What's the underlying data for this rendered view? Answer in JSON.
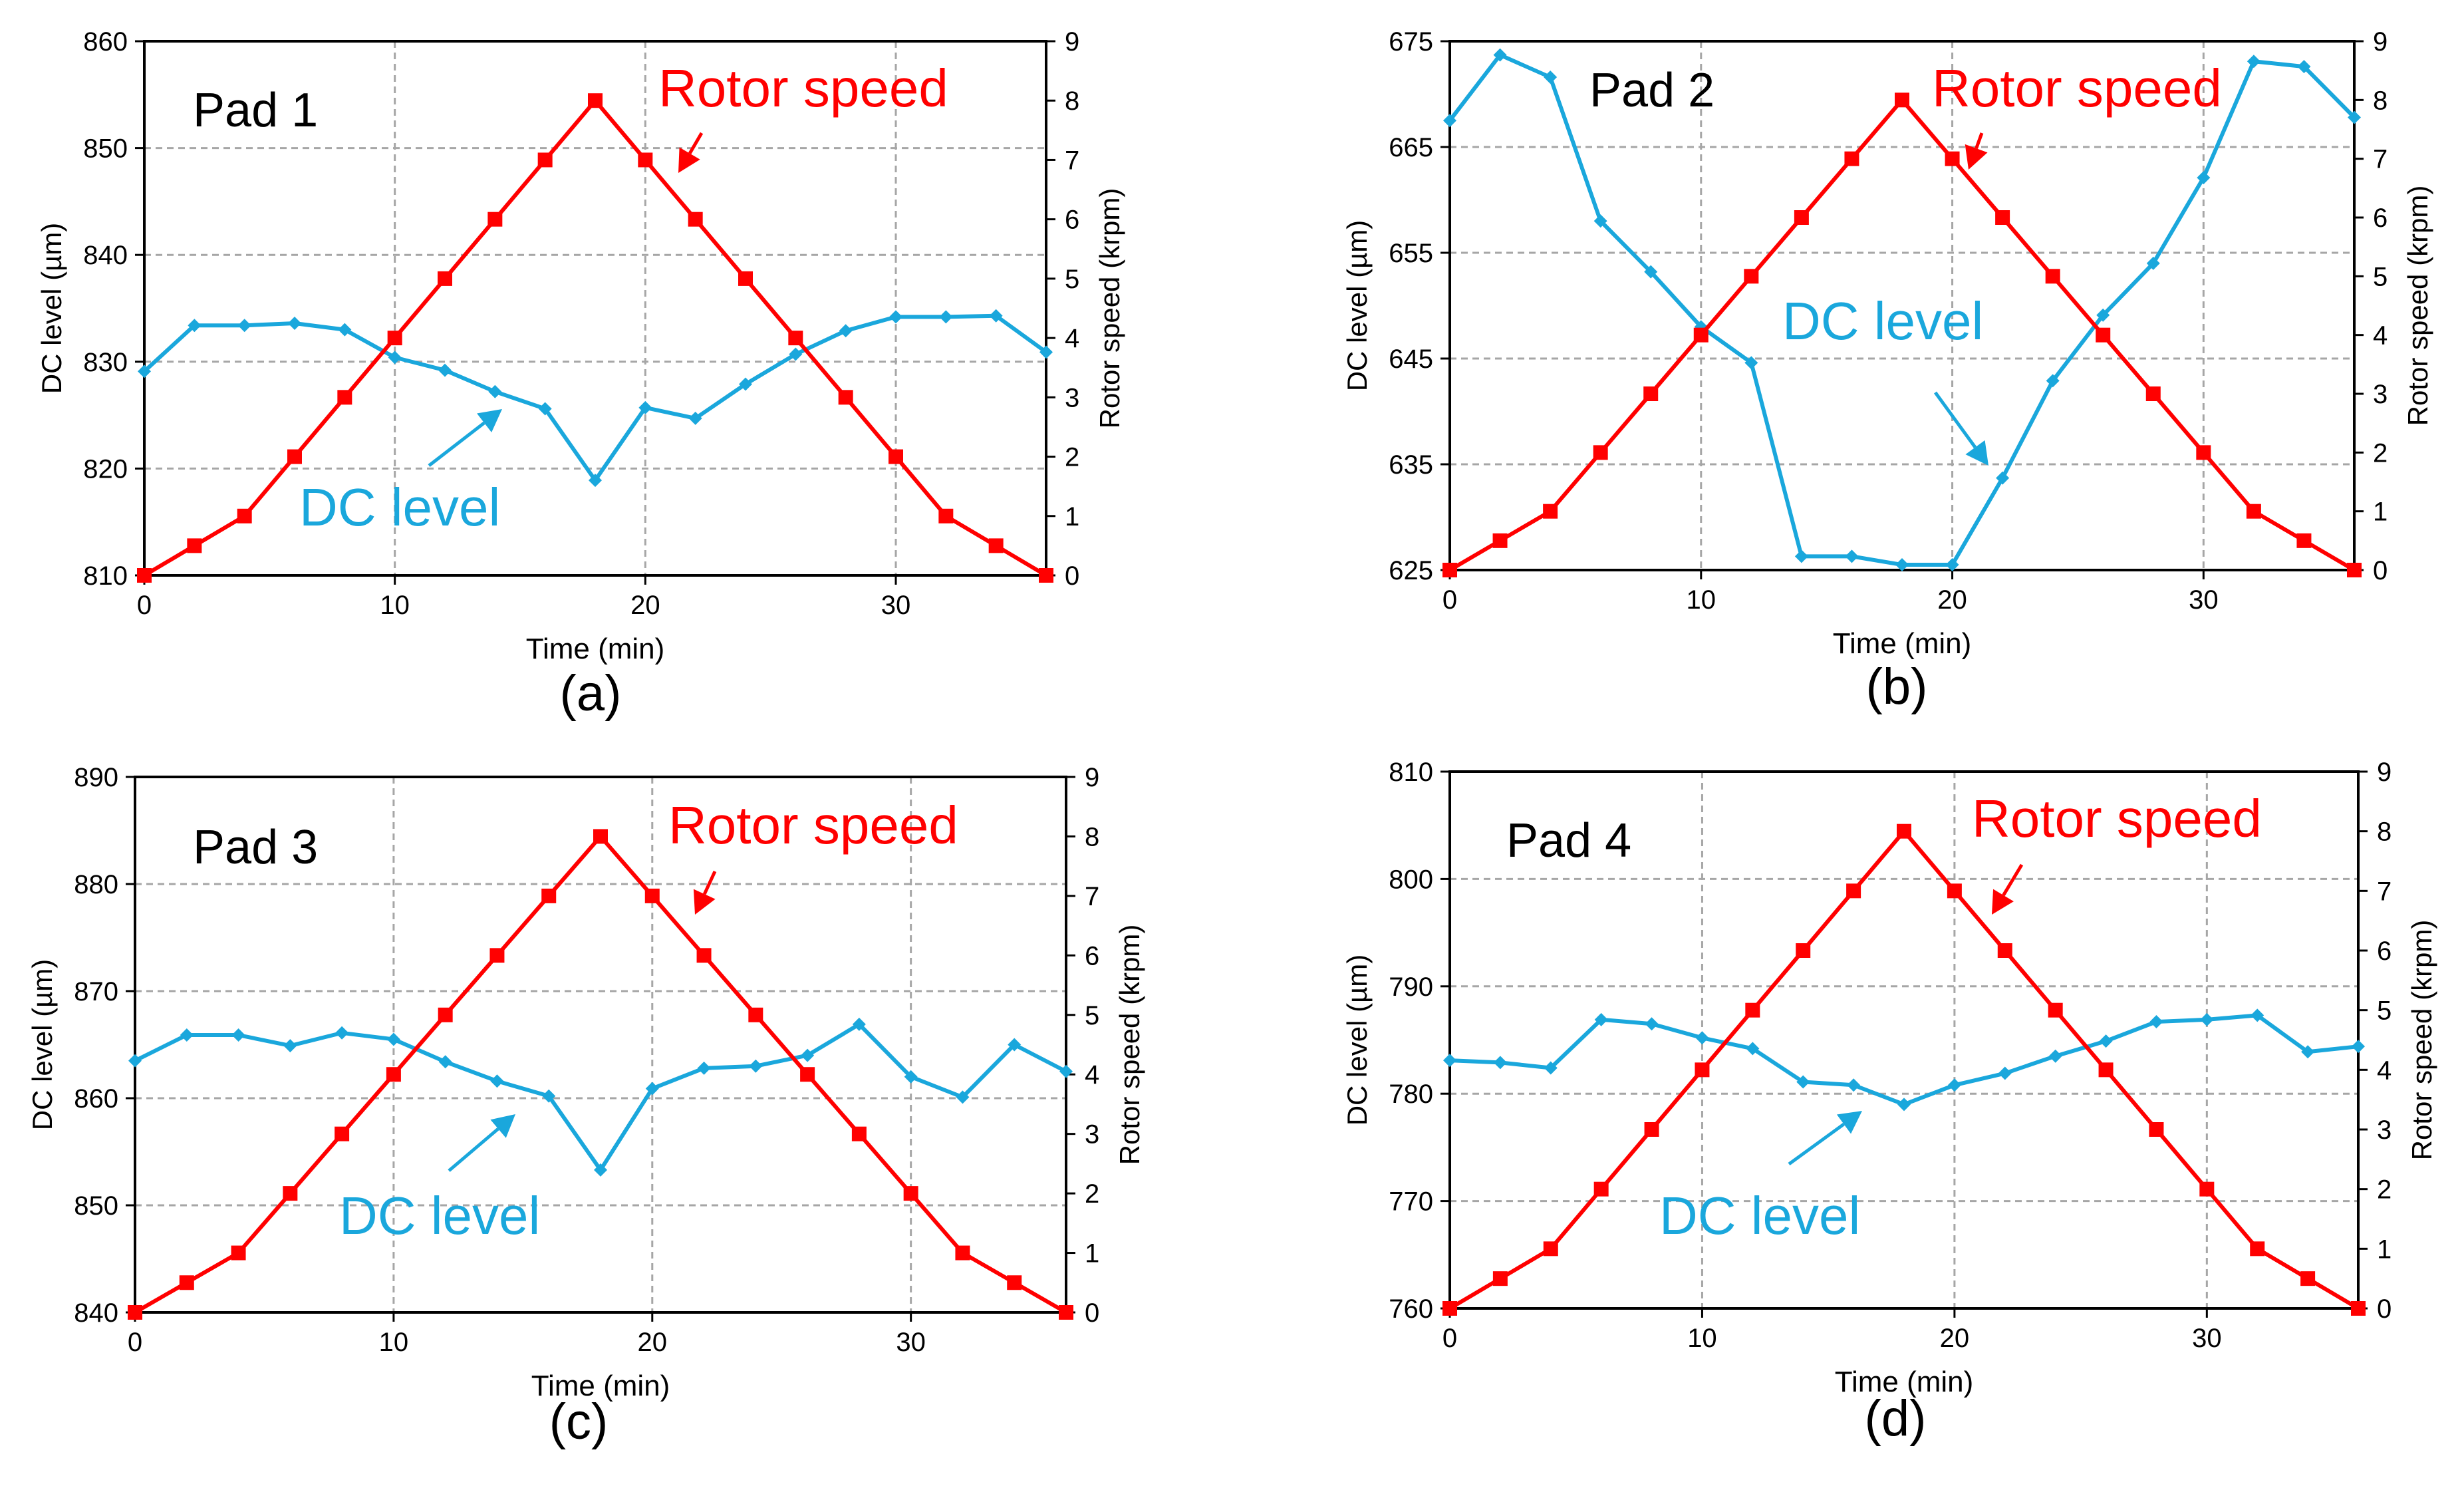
{
  "colors": {
    "rotor": "#ff0000",
    "dc": "#1aa7dc",
    "axis": "#000000",
    "grid": "#a6a6a6"
  },
  "chart_data": [
    {
      "type": "line",
      "panel_label": "(a)",
      "pad_label": "Pad 1",
      "xlabel": "Time (min)",
      "ylabel": "DC level (µm)",
      "y2label": "Rotor speed (krpm)",
      "xlim": [
        0,
        36
      ],
      "xticks": [
        0,
        10,
        20,
        30
      ],
      "ylim": [
        810,
        860
      ],
      "yticks": [
        810,
        820,
        830,
        840,
        850,
        860
      ],
      "y2lim": [
        0,
        9
      ],
      "y2ticks": [
        0,
        1,
        2,
        3,
        4,
        5,
        6,
        7,
        8,
        9
      ],
      "annotations": {
        "rotor": "Rotor speed",
        "dc": "DC level"
      },
      "x": [
        0,
        2,
        4,
        6,
        8,
        10,
        12,
        14,
        16,
        18,
        20,
        22,
        24,
        26,
        28,
        30,
        32,
        34,
        36
      ],
      "series": [
        {
          "name": "DC level",
          "axis": "left",
          "values": [
            829.1,
            833.4,
            833.4,
            833.6,
            833.0,
            830.4,
            829.2,
            827.2,
            825.6,
            818.9,
            825.7,
            824.7,
            827.9,
            830.7,
            832.9,
            834.2,
            834.2,
            834.3,
            830.9
          ]
        },
        {
          "name": "Rotor speed",
          "axis": "right",
          "values": [
            0,
            0.5,
            1,
            2,
            3,
            4,
            5,
            6,
            7,
            8,
            7,
            6,
            5,
            4,
            3,
            2,
            1,
            0.5,
            0
          ]
        }
      ]
    },
    {
      "type": "line",
      "panel_label": "(b)",
      "pad_label": "Pad 2",
      "xlabel": "Time (min)",
      "ylabel": "DC level (µm)",
      "y2label": "Rotor speed (krpm)",
      "xlim": [
        0,
        36
      ],
      "xticks": [
        0,
        10,
        20,
        30
      ],
      "ylim": [
        625,
        675
      ],
      "yticks": [
        625,
        635,
        645,
        655,
        665,
        675
      ],
      "y2lim": [
        0,
        9
      ],
      "y2ticks": [
        0,
        1,
        2,
        3,
        4,
        5,
        6,
        7,
        8,
        9
      ],
      "annotations": {
        "rotor": "Rotor speed",
        "dc": "DC level"
      },
      "x": [
        0,
        2,
        4,
        6,
        8,
        10,
        12,
        14,
        16,
        18,
        20,
        22,
        24,
        26,
        28,
        30,
        32,
        34,
        36
      ],
      "series": [
        {
          "name": "DC level",
          "axis": "left",
          "values": [
            667.5,
            673.7,
            671.6,
            658.0,
            653.2,
            648.0,
            644.6,
            626.3,
            626.3,
            625.5,
            625.5,
            633.7,
            642.9,
            649.1,
            654.0,
            662.1,
            673.1,
            672.6,
            667.8
          ]
        },
        {
          "name": "Rotor speed",
          "axis": "right",
          "values": [
            0,
            0.5,
            1,
            2,
            3,
            4,
            5,
            6,
            7,
            8,
            7,
            6,
            5,
            4,
            3,
            2,
            1,
            0.5,
            0
          ]
        }
      ]
    },
    {
      "type": "line",
      "panel_label": "(c)",
      "pad_label": "Pad 3",
      "xlabel": "Time (min)",
      "ylabel": "DC level (µm)",
      "y2label": "Rotor speed (krpm)",
      "xlim": [
        0,
        36
      ],
      "xticks": [
        0,
        10,
        20,
        30
      ],
      "ylim": [
        840,
        890
      ],
      "yticks": [
        840,
        850,
        860,
        870,
        880,
        890
      ],
      "y2lim": [
        0,
        9
      ],
      "y2ticks": [
        0,
        1,
        2,
        3,
        4,
        5,
        6,
        7,
        8,
        9
      ],
      "annotations": {
        "rotor": "Rotor speed",
        "dc": "DC level"
      },
      "x": [
        0,
        2,
        4,
        6,
        8,
        10,
        12,
        14,
        16,
        18,
        20,
        22,
        24,
        26,
        28,
        30,
        32,
        34,
        36
      ],
      "series": [
        {
          "name": "DC level",
          "axis": "left",
          "values": [
            863.5,
            865.9,
            865.9,
            864.9,
            866.1,
            865.5,
            863.4,
            861.6,
            860.2,
            853.3,
            860.9,
            862.8,
            863.0,
            864.0,
            866.9,
            862.0,
            860.1,
            865.0,
            862.5
          ]
        },
        {
          "name": "Rotor speed",
          "axis": "right",
          "values": [
            0,
            0.5,
            1,
            2,
            3,
            4,
            5,
            6,
            7,
            8,
            7,
            6,
            5,
            4,
            3,
            2,
            1,
            0.5,
            0
          ]
        }
      ]
    },
    {
      "type": "line",
      "panel_label": "(d)",
      "pad_label": "Pad 4",
      "xlabel": "Time (min)",
      "ylabel": "DC level (µm)",
      "y2label": "Rotor speed (krpm)",
      "xlim": [
        0,
        36
      ],
      "xticks": [
        0,
        10,
        20,
        30
      ],
      "ylim": [
        760,
        810
      ],
      "yticks": [
        760,
        770,
        780,
        790,
        800,
        810
      ],
      "y2lim": [
        0,
        9
      ],
      "y2ticks": [
        0,
        1,
        2,
        3,
        4,
        5,
        6,
        7,
        8,
        9
      ],
      "annotations": {
        "rotor": "Rotor speed",
        "dc": "DC level"
      },
      "x": [
        0,
        2,
        4,
        6,
        8,
        10,
        12,
        14,
        16,
        18,
        20,
        22,
        24,
        26,
        28,
        30,
        32,
        34,
        36
      ],
      "series": [
        {
          "name": "DC level",
          "axis": "left",
          "values": [
            783.1,
            782.9,
            782.4,
            786.9,
            786.5,
            785.2,
            784.2,
            781.1,
            780.8,
            779.0,
            780.8,
            781.9,
            783.5,
            784.9,
            786.7,
            786.9,
            787.3,
            783.9,
            784.4
          ]
        },
        {
          "name": "Rotor speed",
          "axis": "right",
          "values": [
            0,
            0.5,
            1,
            2,
            3,
            4,
            5,
            6,
            7,
            8,
            7,
            6,
            5,
            4,
            3,
            2,
            1,
            0.5,
            0
          ]
        }
      ]
    }
  ]
}
